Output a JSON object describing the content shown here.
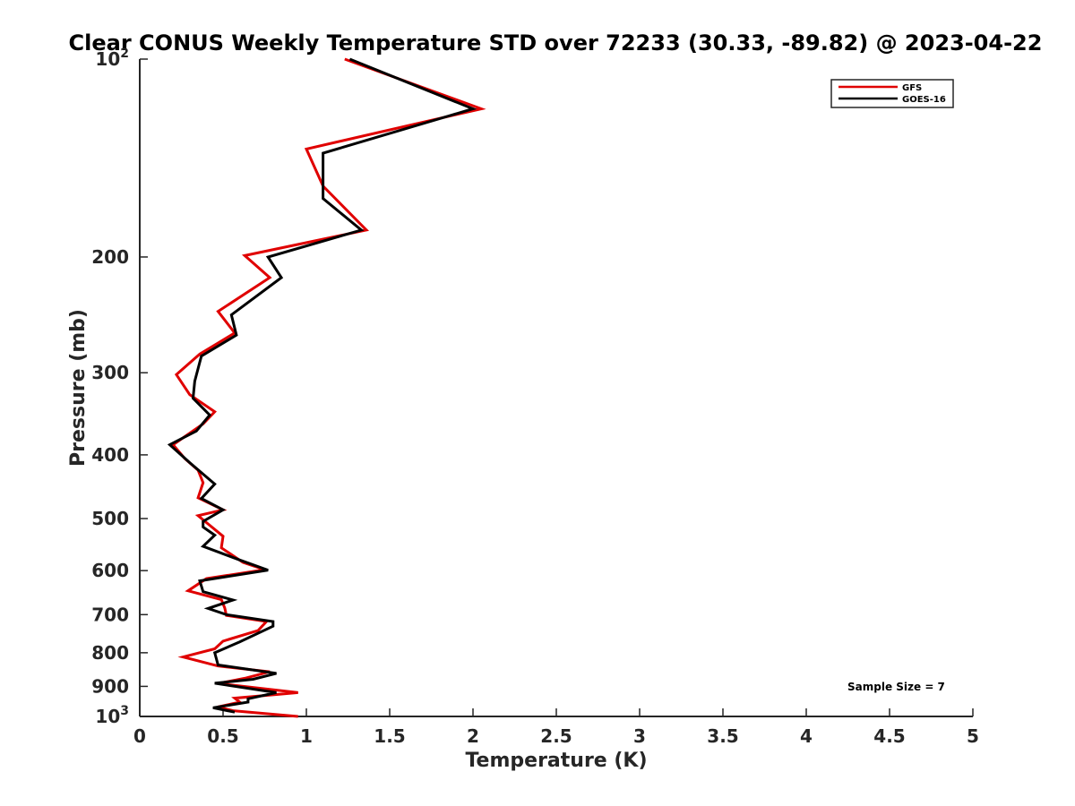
{
  "chart_data": {
    "type": "line",
    "title": "Clear CONUS Weekly Temperature STD over 72233 (30.33, -89.82) @ 2023-04-22",
    "xlabel": "Temperature (K)",
    "ylabel": "Pressure (mb)",
    "xlim": [
      0,
      5
    ],
    "ylim": [
      100,
      1000
    ],
    "yscale": "log",
    "yreversed": true,
    "grid": false,
    "legend_position": "top-right",
    "x_ticks": [
      0,
      0.5,
      1,
      1.5,
      2,
      2.5,
      3,
      3.5,
      4,
      4.5,
      5
    ],
    "x_tick_labels": [
      "0",
      "0.5",
      "1",
      "1.5",
      "2",
      "2.5",
      "3",
      "3.5",
      "4",
      "4.5",
      "5"
    ],
    "y_ticks": [
      100,
      200,
      300,
      400,
      500,
      600,
      700,
      800,
      900,
      1000
    ],
    "y_tick_labels": [
      "10^2",
      "200",
      "300",
      "400",
      "500",
      "600",
      "700",
      "800",
      "900",
      "10^3"
    ],
    "annotation": "Sample Size = 7",
    "series": [
      {
        "name": "GFS",
        "color": "#e00000",
        "points": [
          [
            1.23,
            100
          ],
          [
            2.05,
            119
          ],
          [
            1.0,
            137
          ],
          [
            1.1,
            156
          ],
          [
            1.36,
            182
          ],
          [
            0.63,
            199
          ],
          [
            0.78,
            215
          ],
          [
            0.47,
            242
          ],
          [
            0.57,
            261
          ],
          [
            0.36,
            281
          ],
          [
            0.22,
            302
          ],
          [
            0.3,
            324
          ],
          [
            0.45,
            344
          ],
          [
            0.38,
            359
          ],
          [
            0.2,
            386
          ],
          [
            0.27,
            405
          ],
          [
            0.35,
            422
          ],
          [
            0.38,
            441
          ],
          [
            0.35,
            465
          ],
          [
            0.5,
            485
          ],
          [
            0.35,
            495
          ],
          [
            0.4,
            507
          ],
          [
            0.5,
            532
          ],
          [
            0.49,
            554
          ],
          [
            0.62,
            583
          ],
          [
            0.75,
            598
          ],
          [
            0.4,
            617
          ],
          [
            0.29,
            644
          ],
          [
            0.49,
            664
          ],
          [
            0.51,
            684
          ],
          [
            0.52,
            702
          ],
          [
            0.76,
            717
          ],
          [
            0.71,
            740
          ],
          [
            0.5,
            768
          ],
          [
            0.45,
            789
          ],
          [
            0.26,
            812
          ],
          [
            0.47,
            838
          ],
          [
            0.78,
            855
          ],
          [
            0.63,
            875
          ],
          [
            0.47,
            891
          ],
          [
            0.95,
            920
          ],
          [
            0.57,
            938
          ],
          [
            0.6,
            951
          ],
          [
            0.47,
            967
          ],
          [
            0.56,
            980
          ],
          [
            0.95,
            1000
          ]
        ]
      },
      {
        "name": "GOES-16",
        "color": "#000000",
        "points": [
          [
            1.26,
            100
          ],
          [
            2.0,
            119
          ],
          [
            1.1,
            139
          ],
          [
            1.1,
            163
          ],
          [
            1.33,
            182
          ],
          [
            0.77,
            200
          ],
          [
            0.85,
            215
          ],
          [
            0.55,
            245
          ],
          [
            0.58,
            263
          ],
          [
            0.37,
            283
          ],
          [
            0.33,
            309
          ],
          [
            0.32,
            328
          ],
          [
            0.42,
            348
          ],
          [
            0.34,
            368
          ],
          [
            0.18,
            386
          ],
          [
            0.3,
            411
          ],
          [
            0.45,
            443
          ],
          [
            0.37,
            466
          ],
          [
            0.5,
            485
          ],
          [
            0.38,
            505
          ],
          [
            0.38,
            515
          ],
          [
            0.45,
            530
          ],
          [
            0.38,
            551
          ],
          [
            0.6,
            578
          ],
          [
            0.77,
            599
          ],
          [
            0.36,
            622
          ],
          [
            0.38,
            646
          ],
          [
            0.56,
            665
          ],
          [
            0.41,
            685
          ],
          [
            0.52,
            700
          ],
          [
            0.8,
            717
          ],
          [
            0.8,
            729
          ],
          [
            0.6,
            770
          ],
          [
            0.45,
            800
          ],
          [
            0.47,
            835
          ],
          [
            0.82,
            860
          ],
          [
            0.68,
            878
          ],
          [
            0.45,
            890
          ],
          [
            0.82,
            920
          ],
          [
            0.65,
            940
          ],
          [
            0.65,
            951
          ],
          [
            0.44,
            970
          ],
          [
            0.57,
            985
          ]
        ]
      }
    ]
  }
}
